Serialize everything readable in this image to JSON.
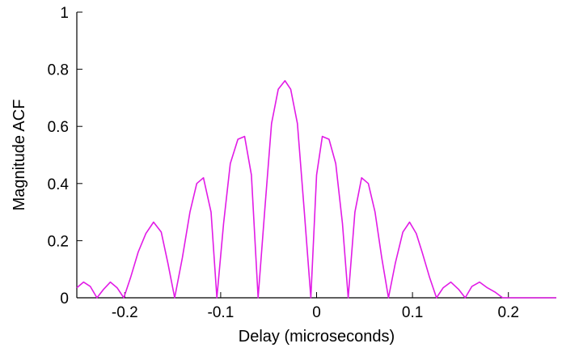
{
  "chart_data": {
    "type": "line",
    "title": "",
    "xlabel": "Delay (microseconds)",
    "ylabel": "Magnitude ACF",
    "xlim": [
      -0.25,
      0.25
    ],
    "ylim": [
      0,
      1
    ],
    "grid": false,
    "x_ticks": [
      {
        "value": -0.2,
        "label": "-0.2"
      },
      {
        "value": -0.1,
        "label": "-0.1"
      },
      {
        "value": 0,
        "label": "0"
      },
      {
        "value": 0.1,
        "label": "0.1"
      },
      {
        "value": 0.2,
        "label": "0.2"
      }
    ],
    "y_ticks": [
      {
        "value": 0,
        "label": "0"
      },
      {
        "value": 0.2,
        "label": "0.2"
      },
      {
        "value": 0.4,
        "label": "0.4"
      },
      {
        "value": 0.6,
        "label": "0.6"
      },
      {
        "value": 0.8,
        "label": "0.8"
      },
      {
        "value": 1,
        "label": "1"
      }
    ],
    "series": [
      {
        "color": "#e11be6",
        "x": [
          -0.25,
          -0.243,
          -0.236,
          -0.229,
          -0.222,
          -0.215,
          -0.208,
          -0.201,
          -0.194,
          -0.186,
          -0.178,
          -0.17,
          -0.162,
          -0.155,
          -0.148,
          -0.14,
          -0.132,
          -0.125,
          -0.118,
          -0.11,
          -0.104,
          -0.097,
          -0.09,
          -0.082,
          -0.075,
          -0.068,
          -0.061,
          -0.054,
          -0.047,
          -0.04,
          -0.033,
          -0.027,
          -0.02,
          -0.013,
          -0.006,
          0,
          0.006,
          0.013,
          0.02,
          0.027,
          0.033,
          0.04,
          0.047,
          0.054,
          0.061,
          0.068,
          0.075,
          0.082,
          0.09,
          0.097,
          0.104,
          0.11,
          0.118,
          0.125,
          0.132,
          0.14,
          0.148,
          0.155,
          0.162,
          0.17,
          0.178,
          0.186,
          0.194,
          0.201,
          0.208,
          0.215,
          0.222,
          0.229,
          0.236,
          0.243,
          0.25
        ],
        "y": [
          0.035,
          0.055,
          0.04,
          0.0,
          0.03,
          0.055,
          0.035,
          0.0,
          0.07,
          0.16,
          0.225,
          0.265,
          0.23,
          0.12,
          0.0,
          0.14,
          0.3,
          0.4,
          0.42,
          0.3,
          0.0,
          0.26,
          0.47,
          0.555,
          0.565,
          0.43,
          0.0,
          0.31,
          0.61,
          0.73,
          0.76,
          0.73,
          0.61,
          0.31,
          0.0,
          0.43,
          0.565,
          0.555,
          0.47,
          0.26,
          0.0,
          0.3,
          0.42,
          0.4,
          0.3,
          0.14,
          0.0,
          0.12,
          0.23,
          0.265,
          0.225,
          0.16,
          0.07,
          0.0,
          0.035,
          0.055,
          0.03,
          0.0,
          0.04,
          0.055,
          0.035,
          0.02,
          0.0,
          0.0,
          0.0,
          0.0,
          0.0,
          0.0,
          0.0,
          0.0,
          0.0
        ]
      }
    ]
  }
}
